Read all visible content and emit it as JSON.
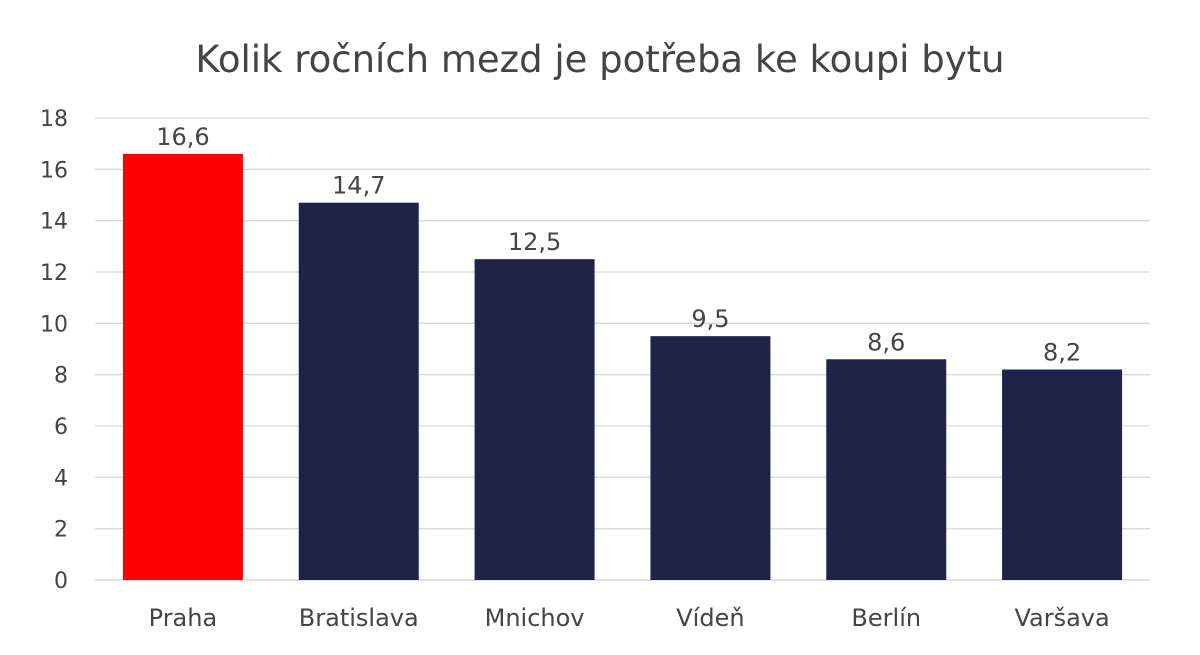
{
  "chart_data": {
    "type": "bar",
    "title": "Kolik ročních mezd je potřeba ke koupi bytu",
    "categories": [
      "Praha",
      "Bratislava",
      "Mnichov",
      "Vídeň",
      "Berlín",
      "Varšava"
    ],
    "values": [
      16.6,
      14.7,
      12.5,
      9.5,
      8.6,
      8.2
    ],
    "data_labels": [
      "16,6",
      "14,7",
      "12,5",
      "9,5",
      "8,6",
      "8,2"
    ],
    "bar_colors": [
      "#ff0000",
      "#1f2348",
      "#1f2348",
      "#1f2348",
      "#1f2348",
      "#1f2348"
    ],
    "ylim": [
      0,
      18
    ],
    "yticks": [
      0,
      2,
      4,
      6,
      8,
      10,
      12,
      14,
      16,
      18
    ],
    "xlabel": "",
    "ylabel": "",
    "grid": true,
    "legend": "none"
  }
}
